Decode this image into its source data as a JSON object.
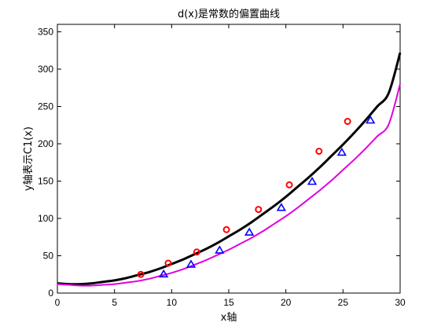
{
  "chart_data": {
    "type": "line",
    "title": "d(x)是常数的偏置曲线",
    "xlabel": "x轴",
    "ylabel": "y轴表示C1(x)",
    "xlim": [
      0,
      30
    ],
    "ylim": [
      0,
      360
    ],
    "x_ticks": [
      0,
      5,
      10,
      15,
      20,
      25,
      30
    ],
    "y_ticks": [
      0,
      50,
      100,
      150,
      200,
      250,
      300,
      350
    ],
    "grid": false,
    "legend": "none",
    "series": [
      {
        "kind": "curve",
        "color": "#000000",
        "x": [
          0,
          1,
          2,
          3,
          4,
          5,
          6,
          7,
          8,
          9,
          10,
          11,
          12,
          13,
          14,
          15,
          16,
          17,
          18,
          19,
          20,
          21,
          22,
          23,
          24,
          25,
          26,
          27,
          28,
          29,
          30
        ],
        "values": [
          13,
          12,
          12,
          13,
          15,
          17,
          20,
          24,
          28,
          33,
          39,
          45,
          52,
          59,
          67,
          76,
          85,
          95,
          106,
          117,
          129,
          142,
          155,
          169,
          184,
          199,
          215,
          232,
          250,
          268,
          322
        ]
      },
      {
        "kind": "curve",
        "color": "#e000e0",
        "x": [
          0,
          1,
          2,
          3,
          4,
          5,
          6,
          7,
          8,
          9,
          10,
          11,
          12,
          13,
          14,
          15,
          16,
          17,
          18,
          19,
          20,
          21,
          22,
          23,
          24,
          25,
          26,
          27,
          28,
          29,
          30
        ],
        "values": [
          12,
          11,
          10,
          10,
          11,
          12,
          14,
          16,
          19,
          23,
          27,
          32,
          38,
          44,
          51,
          58,
          66,
          74,
          83,
          93,
          103,
          114,
          126,
          138,
          151,
          165,
          179,
          194,
          210,
          226,
          280
        ]
      },
      {
        "kind": "markers",
        "marker": "circle",
        "color": "#ff0000",
        "x": [
          7.3,
          9.7,
          12.2,
          14.8,
          17.6,
          20.3,
          22.9,
          25.4
        ],
        "values": [
          25,
          40,
          55,
          85,
          112,
          145,
          190,
          230
        ]
      },
      {
        "kind": "markers",
        "marker": "triangle",
        "color": "#0000ff",
        "x": [
          9.3,
          11.7,
          14.2,
          16.8,
          19.6,
          22.3,
          24.9,
          27.4
        ],
        "values": [
          25,
          38,
          57,
          81,
          114,
          149,
          188,
          231
        ]
      }
    ]
  }
}
